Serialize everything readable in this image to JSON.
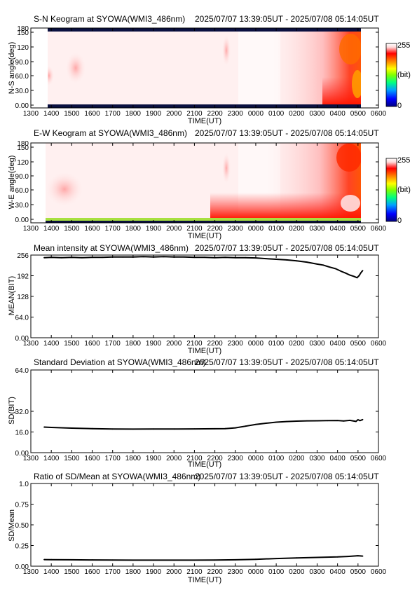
{
  "x_ticks": [
    "1300",
    "1400",
    "1500",
    "1600",
    "1700",
    "1800",
    "1900",
    "2000",
    "2100",
    "2200",
    "2300",
    "0000",
    "0100",
    "0200",
    "0300",
    "0400",
    "0500",
    "0600"
  ],
  "time_label": "TIME(UT)",
  "date_range": "2025/07/07 13:39:05UT - 2025/07/08 05:14:05UT",
  "colorbar": {
    "max_label": "255",
    "unit_label": "(bit)",
    "min_label": "0",
    "colors": [
      "#00007f",
      "#0000ff",
      "#00a0ff",
      "#00ff80",
      "#80ff00",
      "#ffff00",
      "#ff8000",
      "#ff0000",
      "#ffd8d8",
      "#ffffff"
    ]
  },
  "chart_data": [
    {
      "type": "heatmap",
      "title": "S-N Keogram at SYOWA(WMI3_486nm)",
      "xlabel": "TIME(UT)",
      "ylabel": "N-S angle(deg)",
      "y_ticks": [
        "0.00",
        "30.0",
        "60.0",
        "90.0",
        "120",
        "150",
        "180"
      ],
      "ylim": [
        0,
        180
      ],
      "xlim_hours": [
        13.0,
        30.0
      ],
      "data_start_hour": 13.65,
      "data_end_hour": 29.23,
      "colorbar": "0 to 255 (bit)"
    },
    {
      "type": "heatmap",
      "title": "E-W Keogram at SYOWA(WMI3_486nm)",
      "xlabel": "TIME(UT)",
      "ylabel": "W-E angle(deg)",
      "y_ticks": [
        "0.00",
        "30.0",
        "60.0",
        "90.0",
        "120",
        "150",
        "180"
      ],
      "ylim": [
        0,
        180
      ],
      "xlim_hours": [
        13.0,
        30.0
      ],
      "data_start_hour": 13.65,
      "data_end_hour": 29.23,
      "colorbar": "0 to 255 (bit)"
    },
    {
      "type": "line",
      "title": "Mean intensity at SYOWA(WMI3_486nm)",
      "xlabel": "TIME(UT)",
      "ylabel": "MEAN(BIT)",
      "y_ticks": [
        "0.00",
        "64.0",
        "128",
        "192",
        "256"
      ],
      "ylim": [
        0,
        256
      ],
      "xlim_hours": [
        13.0,
        30.0
      ],
      "x_hours": [
        13.65,
        14.0,
        14.5,
        15.0,
        15.5,
        16.0,
        16.5,
        17.0,
        17.5,
        18.0,
        18.5,
        19.0,
        19.5,
        20.0,
        20.5,
        21.0,
        21.5,
        22.0,
        22.5,
        23.0,
        23.5,
        24.0,
        24.5,
        25.0,
        25.5,
        26.0,
        26.5,
        27.0,
        27.3,
        27.6,
        27.9,
        28.2,
        28.4,
        28.6,
        28.8,
        28.95,
        29.05,
        29.15,
        29.23
      ],
      "values": [
        248,
        249,
        248,
        249,
        248,
        249,
        249,
        250,
        250,
        250,
        251,
        250,
        251,
        250,
        250,
        249,
        249,
        248,
        249,
        248,
        248,
        247,
        245,
        243,
        241,
        238,
        234,
        228,
        225,
        219,
        214,
        205,
        200,
        194,
        190,
        186,
        192,
        202,
        208
      ]
    },
    {
      "type": "line",
      "title": "Standard Deviation at SYOWA(WMI3_486nm)",
      "xlabel": "TIME(UT)",
      "ylabel": "SD(BIT)",
      "y_ticks": [
        "0.00",
        "16.0",
        "32.0",
        "64.0"
      ],
      "ylim": [
        0,
        64
      ],
      "xlim_hours": [
        13.0,
        30.0
      ],
      "x_hours": [
        13.65,
        14.0,
        15.0,
        16.0,
        17.0,
        18.0,
        19.0,
        20.0,
        21.0,
        22.0,
        22.5,
        23.0,
        23.5,
        24.0,
        24.5,
        25.0,
        25.5,
        26.0,
        26.5,
        27.0,
        27.5,
        28.0,
        28.3,
        28.6,
        28.9,
        29.0,
        29.1,
        29.23
      ],
      "values": [
        19.8,
        19.5,
        19.0,
        18.6,
        18.3,
        18.2,
        18.3,
        18.3,
        18.4,
        18.5,
        18.6,
        19.2,
        20.5,
        21.8,
        22.8,
        23.6,
        24.1,
        24.4,
        24.6,
        24.7,
        24.8,
        24.9,
        24.5,
        25.0,
        24.2,
        25.5,
        24.8,
        25.6
      ]
    },
    {
      "type": "line",
      "title": "Ratio of SD/Mean at SYOWA(WMI3_486nm)",
      "xlabel": "TIME(UT)",
      "ylabel": "SD/Mean",
      "y_ticks": [
        "0.00",
        "0.25",
        "0.50",
        "0.75",
        "1.0"
      ],
      "ylim": [
        0,
        1.0
      ],
      "xlim_hours": [
        13.0,
        30.0
      ],
      "x_hours": [
        13.65,
        14.0,
        15.0,
        16.0,
        17.0,
        18.0,
        19.0,
        20.0,
        21.0,
        22.0,
        23.0,
        24.0,
        25.0,
        26.0,
        27.0,
        28.0,
        28.5,
        29.0,
        29.23
      ],
      "values": [
        0.08,
        0.079,
        0.077,
        0.075,
        0.074,
        0.073,
        0.073,
        0.073,
        0.073,
        0.074,
        0.077,
        0.083,
        0.092,
        0.1,
        0.106,
        0.112,
        0.118,
        0.126,
        0.122
      ]
    }
  ]
}
